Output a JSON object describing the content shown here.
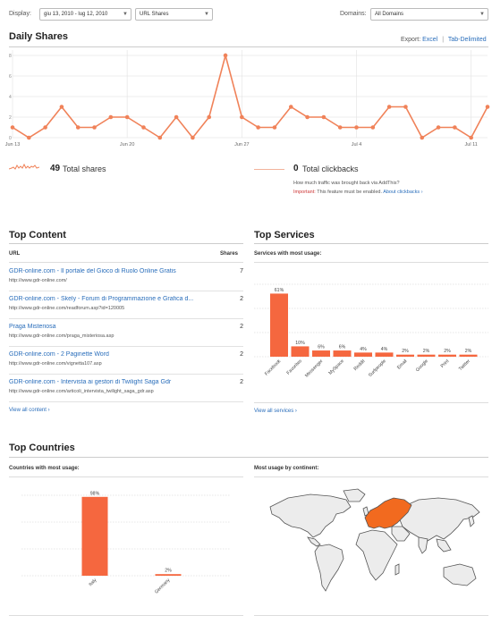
{
  "controls": {
    "display_label": "Display:",
    "date_range": "giu 13, 2010 - lug 12, 2010",
    "metric": "URL Shares",
    "domains_label": "Domains:",
    "domains_value": "All Domains"
  },
  "daily_shares": {
    "title": "Daily Shares",
    "export_label": "Export:",
    "excel": "Excel",
    "separator": "|",
    "tab_delimited": "Tab-Delimited",
    "accent_color": "#f08259"
  },
  "chart_data": [
    {
      "type": "line",
      "name": "daily-shares",
      "x": [
        "Jun 13",
        "Jun 14",
        "Jun 15",
        "Jun 16",
        "Jun 17",
        "Jun 18",
        "Jun 19",
        "Jun 20",
        "Jun 21",
        "Jun 22",
        "Jun 23",
        "Jun 24",
        "Jun 25",
        "Jun 26",
        "Jun 27",
        "Jun 28",
        "Jun 29",
        "Jun 30",
        "Jul 1",
        "Jul 2",
        "Jul 3",
        "Jul 4",
        "Jul 5",
        "Jul 6",
        "Jul 7",
        "Jul 8",
        "Jul 9",
        "Jul 10",
        "Jul 11",
        "Jul 12"
      ],
      "values": [
        1,
        0,
        1,
        3,
        1,
        1,
        2,
        2,
        1,
        0,
        2,
        0,
        2,
        8,
        2,
        1,
        1,
        3,
        2,
        2,
        1,
        1,
        1,
        3,
        3,
        0,
        1,
        1,
        0,
        3
      ],
      "y_ticks": [
        "0",
        "2",
        "4",
        "6",
        "8"
      ],
      "x_tick_labels": [
        "Jun 13",
        "Jun 20",
        "Jun 27",
        "Jul 4",
        "Jul 11"
      ],
      "ylim": [
        0,
        8
      ],
      "grid": true,
      "color": "#f08259"
    },
    {
      "type": "bar",
      "name": "top-services",
      "categories": [
        "Facebook",
        "Favorites",
        "Messenger",
        "MySpace",
        "Reddit",
        "Surfpeople",
        "Email",
        "Google",
        "Print",
        "Twitter"
      ],
      "values": [
        61,
        10,
        6,
        6,
        4,
        4,
        2,
        2,
        2,
        2
      ],
      "labels": [
        "61%",
        "10%",
        "6%",
        "6%",
        "4%",
        "4%",
        "2%",
        "2%",
        "2%",
        "2%"
      ],
      "ylim": [
        0,
        70
      ],
      "color": "#f5673f"
    },
    {
      "type": "bar",
      "name": "top-countries",
      "categories": [
        "Italy",
        "Germany"
      ],
      "values": [
        98,
        2
      ],
      "labels": [
        "98%",
        "2%"
      ],
      "ylim": [
        0,
        100
      ],
      "color": "#f5673f"
    }
  ],
  "totals": {
    "shares_num": "49",
    "shares_label": "Total shares",
    "clickbacks_num": "0",
    "clickbacks_label": "Total clickbacks",
    "clickbacks_question": "How much traffic was brought back via AddThis?",
    "important_label": "Important:",
    "important_text": "This feature must be enabled.",
    "about_link": "About clickbacks ›"
  },
  "top_content": {
    "title": "Top Content",
    "col_url": "URL",
    "col_shares": "Shares",
    "rows": [
      {
        "title": "GDR-online.com - Il portale del Gioco di Ruolo Online Gratis",
        "url": "http://www.gdr-online.com/",
        "shares": "7"
      },
      {
        "title": "GDR-online.com - Skely - Forum di Programmazione e Grafica d...",
        "url": "http://www.gdr-online.com/readforum.asp?id=120005",
        "shares": "2"
      },
      {
        "title": "Praga Misteriosa",
        "url": "http://www.gdr-online.com/praga_misteriosa.asp",
        "shares": "2"
      },
      {
        "title": "GDR-online.com - 2 Paginette Word",
        "url": "http://www.gdr-online.com/vignetta107.asp",
        "shares": "2"
      },
      {
        "title": "GDR-online.com - Intervista ai gestori di Twilight Saga Gdr",
        "url": "http://www.gdr-online.com/articoli_intervista_twilight_saga_gdr.asp",
        "shares": "2"
      }
    ],
    "view_all": "View all content ›"
  },
  "top_services": {
    "title": "Top Services",
    "subtitle": "Services with most usage:",
    "view_all": "View all services ›"
  },
  "top_countries": {
    "title": "Top Countries",
    "subtitle": "Countries with most usage:",
    "continent_subtitle": "Most usage by continent:",
    "highlight_color": "#f26a1f"
  }
}
